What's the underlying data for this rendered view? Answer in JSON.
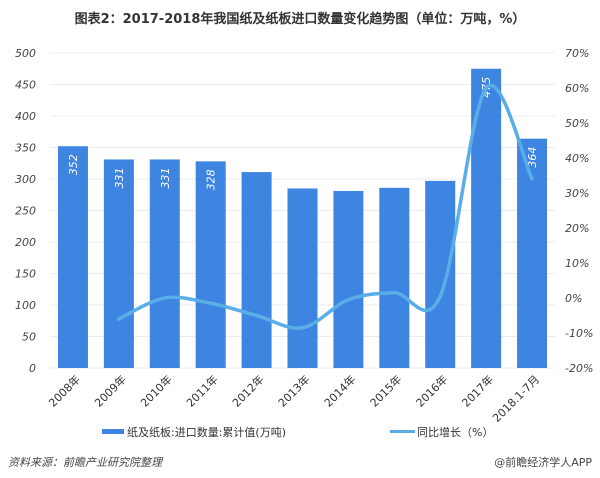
{
  "title": "图表2：2017-2018年我国纸及纸板进口数量变化趋势图（单位：万吨，%）",
  "source": "资料来源：前瞻产业研究院整理",
  "brand": "@前瞻经济学人APP",
  "watermark": "前瞻产业研究院",
  "chart_data": {
    "type": "bar",
    "categories": [
      "2008年",
      "2009年",
      "2010年",
      "2011年",
      "2012年",
      "2013年",
      "2014年",
      "2015年",
      "2016年",
      "2017年",
      "2018.1-7月"
    ],
    "series": [
      {
        "name": "纸及纸板:进口数量:累计值(万吨)",
        "type": "bar",
        "axis": "left",
        "color": "#3d85e0",
        "values": [
          352,
          331,
          331,
          328,
          311,
          285,
          281,
          286,
          297,
          475,
          364
        ],
        "data_labels": [
          "352",
          "331",
          "331",
          "328",
          "",
          "",
          "",
          "",
          "",
          "475",
          "364"
        ]
      },
      {
        "name": "同比增长（%）",
        "type": "line",
        "axis": "right",
        "color": "#5aaee8",
        "values": [
          null,
          -6,
          0,
          -1.5,
          -5,
          -8.5,
          -0.5,
          1.5,
          0.5,
          60,
          34
        ]
      }
    ],
    "y_left": {
      "range": [
        0,
        500
      ],
      "ticks": [
        "0",
        "50",
        "100",
        "150",
        "200",
        "250",
        "300",
        "350",
        "400",
        "450",
        "500"
      ]
    },
    "y_right": {
      "range": [
        -20,
        70
      ],
      "ticks": [
        "-20%",
        "-10%",
        "0%",
        "10%",
        "20%",
        "30%",
        "40%",
        "50%",
        "60%",
        "70%"
      ]
    },
    "grid": true,
    "legend_position": "bottom"
  }
}
